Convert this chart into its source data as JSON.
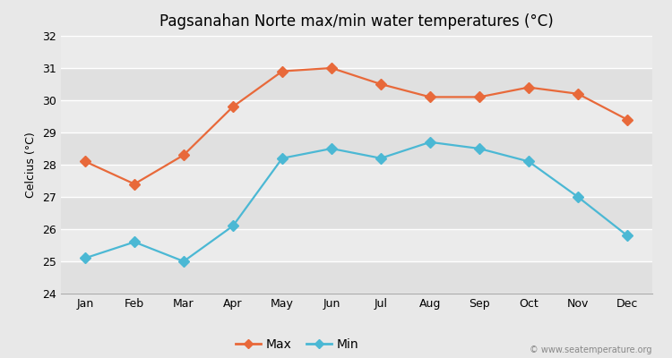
{
  "title": "Pagsanahan Norte max/min water temperatures (°C)",
  "ylabel": "Celcius (°C)",
  "months": [
    "Jan",
    "Feb",
    "Mar",
    "Apr",
    "May",
    "Jun",
    "Jul",
    "Aug",
    "Sep",
    "Oct",
    "Nov",
    "Dec"
  ],
  "max_temps": [
    28.1,
    27.4,
    28.3,
    29.8,
    30.9,
    31.0,
    30.5,
    30.1,
    30.1,
    30.4,
    30.2,
    29.4
  ],
  "min_temps": [
    25.1,
    25.6,
    25.0,
    26.1,
    28.2,
    28.5,
    28.2,
    28.7,
    28.5,
    28.1,
    27.0,
    25.8
  ],
  "max_color": "#e8693a",
  "min_color": "#4bb8d4",
  "ylim": [
    24,
    32
  ],
  "yticks": [
    24,
    25,
    26,
    27,
    28,
    29,
    30,
    31,
    32
  ],
  "background_color": "#e8e8e8",
  "band_colors": [
    "#e0e0e0",
    "#ebebeb"
  ],
  "grid_color": "#ffffff",
  "marker_style": "D",
  "marker_size": 6,
  "line_width": 1.6,
  "title_fontsize": 12,
  "axis_label_fontsize": 9,
  "tick_fontsize": 9,
  "legend_fontsize": 10,
  "watermark": "© www.seatemperature.org"
}
